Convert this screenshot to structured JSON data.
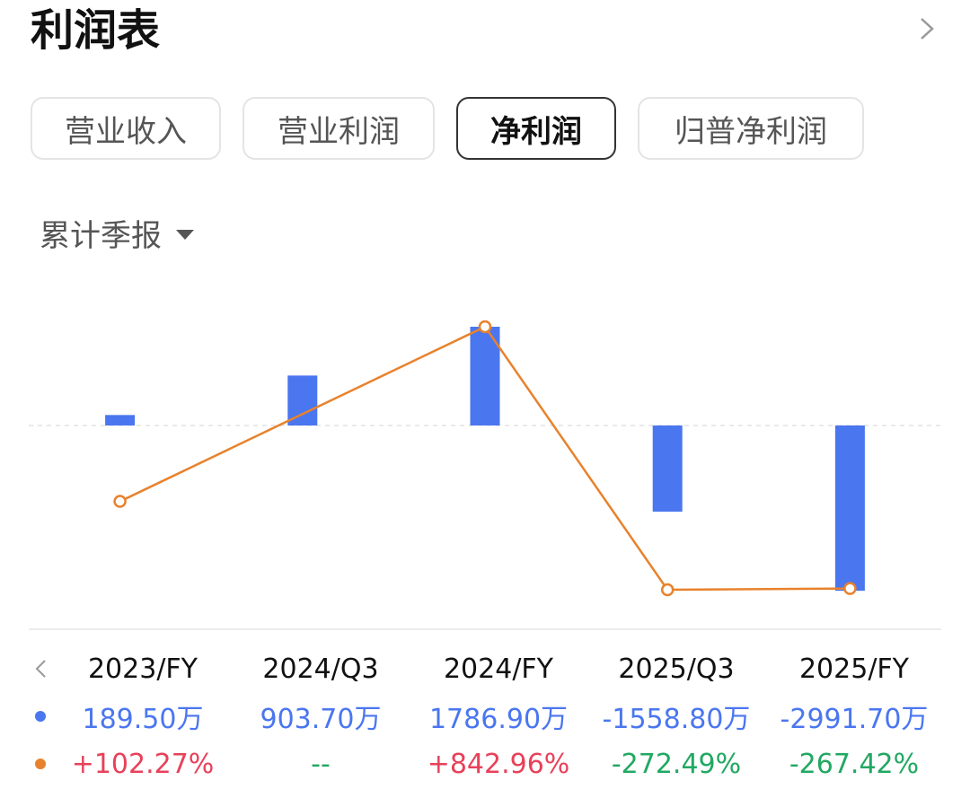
{
  "header": {
    "title": "利润表",
    "more_icon": "chevron-right-icon"
  },
  "tabs": [
    {
      "label": "营业收入",
      "active": false
    },
    {
      "label": "营业利润",
      "active": false
    },
    {
      "label": "净利润",
      "active": true
    },
    {
      "label": "归普净利润",
      "active": false
    }
  ],
  "period_selector": {
    "label": "累计季报",
    "icon": "caret-down-icon"
  },
  "colors": {
    "bar": "#4a76f0",
    "line": "#e8822c",
    "positive": "#e8415a",
    "negative": "#22a862"
  },
  "chart_data": {
    "type": "bar",
    "categories": [
      "2023/FY",
      "2024/Q3",
      "2024/FY",
      "2025/Q3",
      "2025/FY"
    ],
    "series": [
      {
        "type": "bar",
        "values": [
          189.5,
          903.7,
          1786.9,
          -1558.8,
          -2991.7
        ],
        "labels": [
          "189.50万",
          "903.70万",
          "1786.90万",
          "-1558.80万",
          "-2991.70万"
        ]
      },
      {
        "type": "line",
        "values": [
          102.27,
          null,
          842.96,
          -272.49,
          -267.42
        ],
        "labels": [
          "+102.27%",
          "--",
          "+842.96%",
          "-272.49%",
          "-267.42%"
        ]
      }
    ],
    "grid": false,
    "zero_line": true
  }
}
